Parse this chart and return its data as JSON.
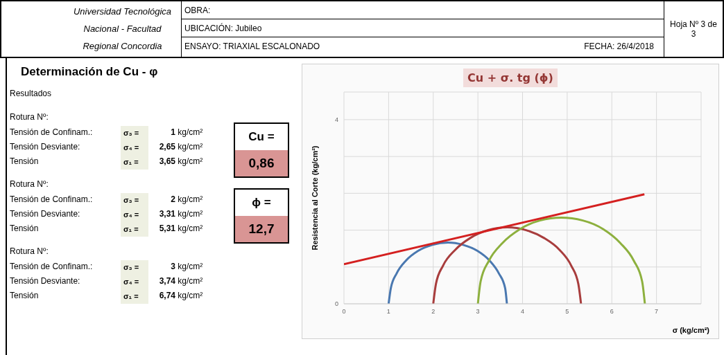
{
  "chart_data": [
    {
      "type": "other",
      "title": "Universidad Tecnológica Nacional - Facultad Regional Concordia",
      "annotations": [
        "OBRA:",
        "UBICACIÓN: Jubileo",
        "ENSAYO: TRIAXIAL ESCALONADO",
        "FECHA: 26/4/2018",
        "Hoja Nº 3 de 3"
      ]
    },
    {
      "type": "other",
      "title": "Determinación de Cu - φ",
      "subtitle": "Resultados",
      "annotations": [
        "Rotura Nº:",
        "Tensión de Confinam.:",
        "σ₃ =",
        "1 kg/cm²",
        "Tensión Desviante:",
        "σ₄ =",
        "2,65 kg/cm²",
        "Tensión",
        "σ₁ =",
        "3,65 kg/cm²",
        "Rotura Nº:",
        "Tensión de Confinam.:",
        "σ₃ =",
        "2 kg/cm²",
        "Tensión Desviante:",
        "σ₄ =",
        "3,31 kg/cm²",
        "Tensión",
        "σ₁ =",
        "5,31 kg/cm²",
        "Rotura Nº:",
        "Tensión de Confinam.:",
        "σ₃ =",
        "3 kg/cm²",
        "Tensión Desviante:",
        "σ₄ =",
        "3,74 kg/cm²",
        "Tensión",
        "σ₁ =",
        "6,74 kg/cm²",
        "Cu =",
        "0,86",
        "ϕ =",
        "12,7"
      ]
    },
    {
      "type": "line",
      "title": "Cu + σ. tg (ϕ)",
      "xlabel": "σ (kg/cm²)",
      "ylabel": "Resistencia al Corte  (kg/cm²)",
      "xlim": [
        0,
        8
      ],
      "xticks": [
        0,
        1,
        2,
        3,
        4,
        5,
        6,
        7,
        {
          "value": 8,
          "label": null
        }
      ],
      "ylim": [
        0,
        4.6
      ],
      "yticks": [
        0,
        {
          "value": 0.8,
          "label": null
        },
        {
          "value": 1.6,
          "label": null
        },
        {
          "value": 2.4,
          "label": null
        },
        {
          "value": 3.2,
          "label": null
        },
        4
      ],
      "grid": true,
      "marker": "none",
      "line_style": "solid",
      "series": [
        {
          "color": "#4a78b0",
          "x": [
            1,
            1.05,
            1.18,
            1.39,
            1.66,
            1.98,
            2.33,
            2.67,
            2.99,
            3.26,
            3.47,
            3.61,
            3.65
          ],
          "values": [
            0,
            0.34,
            0.66,
            0.94,
            1.15,
            1.28,
            1.33,
            1.28,
            1.15,
            0.94,
            0.66,
            0.34,
            0
          ]
        },
        {
          "color": "#a83d3d",
          "x": [
            2,
            2.06,
            2.22,
            2.49,
            2.83,
            3.23,
            3.66,
            4.08,
            4.48,
            4.83,
            5.09,
            5.25,
            5.31
          ],
          "values": [
            0,
            0.43,
            0.83,
            1.17,
            1.43,
            1.6,
            1.66,
            1.6,
            1.43,
            1.17,
            0.83,
            0.43,
            0
          ]
        },
        {
          "color": "#8db03e",
          "x": [
            3,
            3.06,
            3.25,
            3.55,
            3.94,
            4.39,
            4.87,
            5.35,
            5.81,
            6.19,
            6.49,
            6.68,
            6.74
          ],
          "values": [
            0,
            0.48,
            0.94,
            1.32,
            1.62,
            1.81,
            1.87,
            1.81,
            1.62,
            1.32,
            0.94,
            0.48,
            0
          ]
        },
        {
          "color": "#d42020",
          "x": [
            0,
            6.73
          ],
          "values": [
            0.86,
            2.38
          ]
        }
      ]
    }
  ]
}
